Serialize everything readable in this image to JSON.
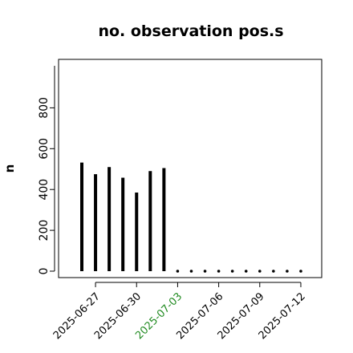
{
  "chart_data": {
    "type": "bar",
    "title": "no. observation pos.s",
    "xlabel": "",
    "ylabel": "n",
    "categories": [
      "2025-06-26",
      "2025-06-27",
      "2025-06-28",
      "2025-06-29",
      "2025-06-30",
      "2025-07-01",
      "2025-07-02",
      "2025-07-03",
      "2025-07-04",
      "2025-07-05",
      "2025-07-06",
      "2025-07-07",
      "2025-07-08",
      "2025-07-09",
      "2025-07-10",
      "2025-07-11",
      "2025-07-12"
    ],
    "values": [
      532,
      475,
      510,
      458,
      385,
      490,
      505,
      0,
      0,
      0,
      0,
      0,
      0,
      0,
      0,
      0,
      0
    ],
    "ylim": [
      0,
      1000
    ],
    "yticks": [
      "0",
      "200",
      "400",
      "600",
      "800"
    ],
    "xtick_labels": [
      {
        "label": "2025-06-27",
        "category": "2025-06-27",
        "color": "#000000"
      },
      {
        "label": "2025-06-30",
        "category": "2025-06-30",
        "color": "#000000"
      },
      {
        "label": "2025-07-03",
        "category": "2025-07-03",
        "color": "#228b22"
      },
      {
        "label": "2025-07-06",
        "category": "2025-07-06",
        "color": "#000000"
      },
      {
        "label": "2025-07-09",
        "category": "2025-07-09",
        "color": "#000000"
      },
      {
        "label": "2025-07-12",
        "category": "2025-07-12",
        "color": "#000000"
      }
    ],
    "bar_color": "#000000",
    "grid": false,
    "legend": "none"
  }
}
